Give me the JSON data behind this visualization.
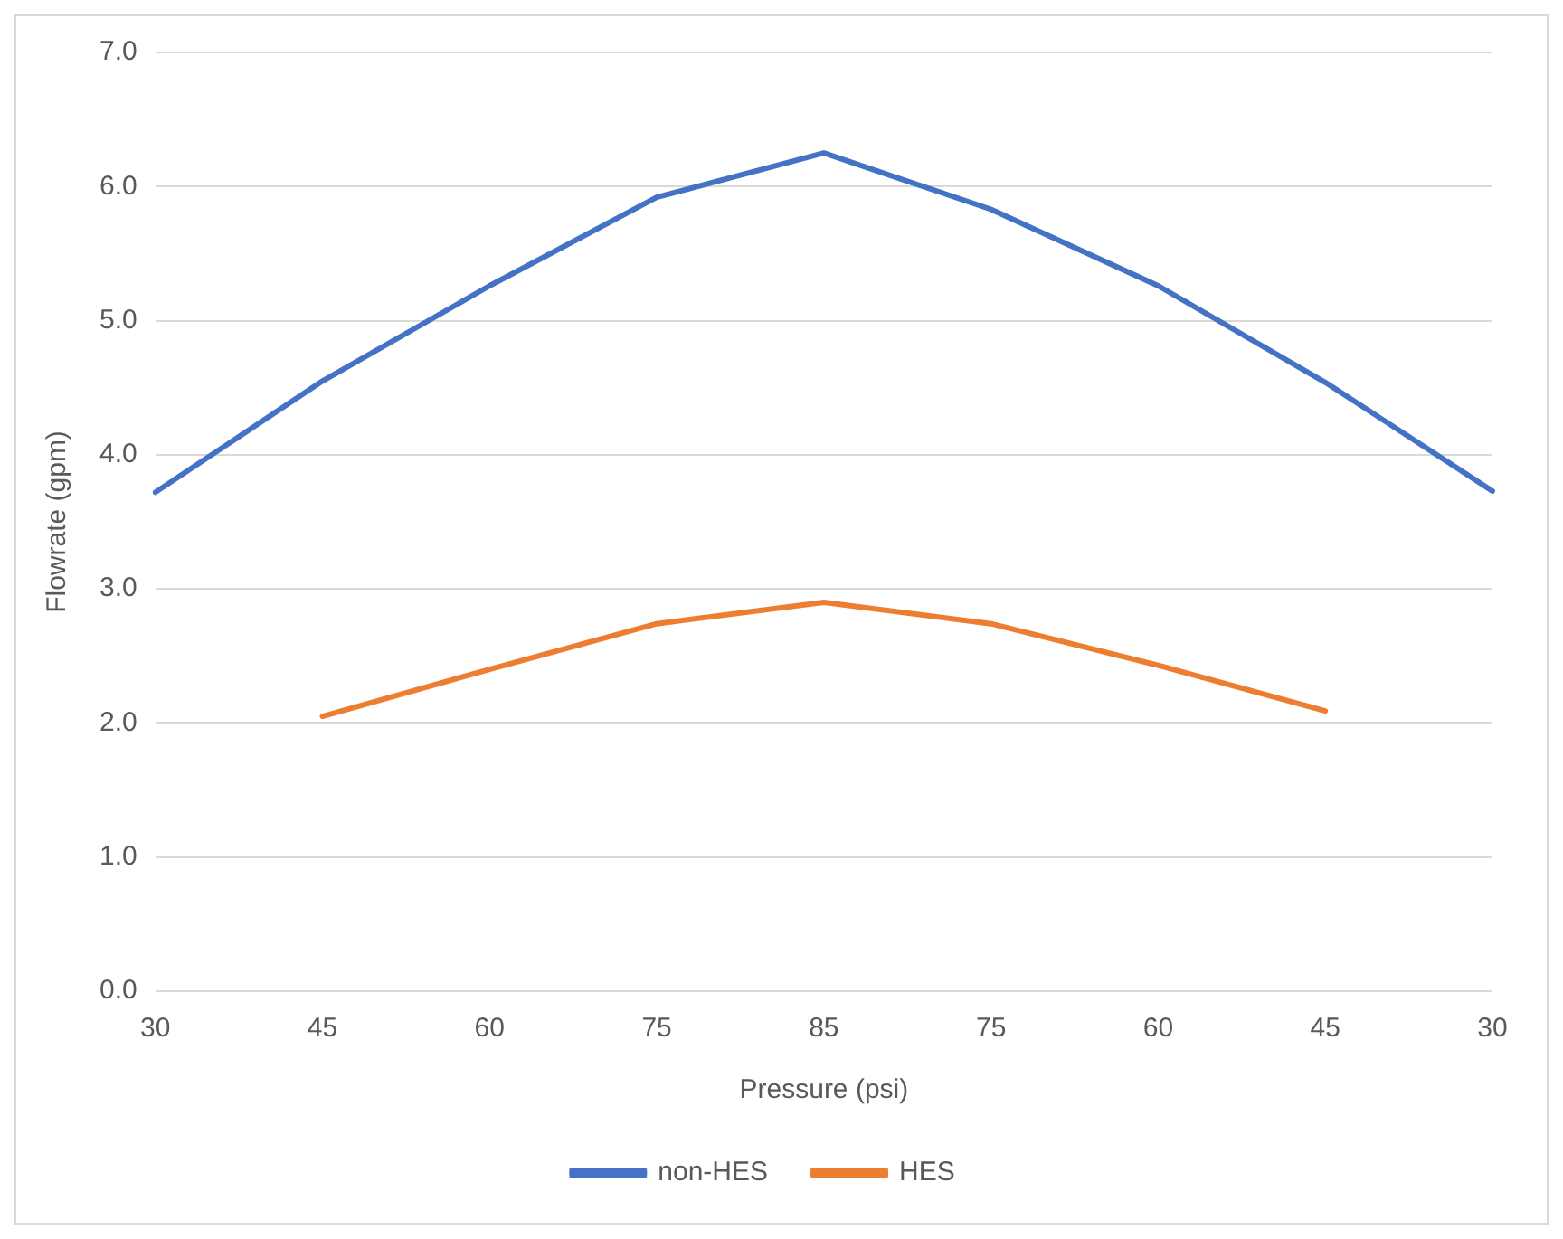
{
  "chart_data": {
    "type": "line",
    "xlabel": "Pressure (psi)",
    "ylabel": "Flowrate (gpm)",
    "categories": [
      "30",
      "45",
      "60",
      "75",
      "85",
      "75",
      "60",
      "45",
      "30"
    ],
    "series": [
      {
        "name": "non-HES",
        "color": "#4472c4",
        "values": [
          3.72,
          4.55,
          5.26,
          5.92,
          6.25,
          5.83,
          5.26,
          4.54,
          3.73
        ]
      },
      {
        "name": "HES",
        "color": "#ed7d31",
        "values": [
          null,
          2.05,
          2.4,
          2.74,
          2.9,
          2.74,
          2.43,
          2.09,
          null
        ]
      }
    ],
    "ylim": [
      0,
      7
    ],
    "yticks": [
      {
        "value": 0,
        "label": "0.0"
      },
      {
        "value": 1,
        "label": "1.0"
      },
      {
        "value": 2,
        "label": "2.0"
      },
      {
        "value": 3,
        "label": "3.0"
      },
      {
        "value": 4,
        "label": "4.0"
      },
      {
        "value": 5,
        "label": "5.0"
      },
      {
        "value": 6,
        "label": "6.0"
      },
      {
        "value": 7,
        "label": "7.0"
      }
    ],
    "grid": "y",
    "legend": "bottom",
    "marker": "none",
    "line_style": "solid"
  }
}
